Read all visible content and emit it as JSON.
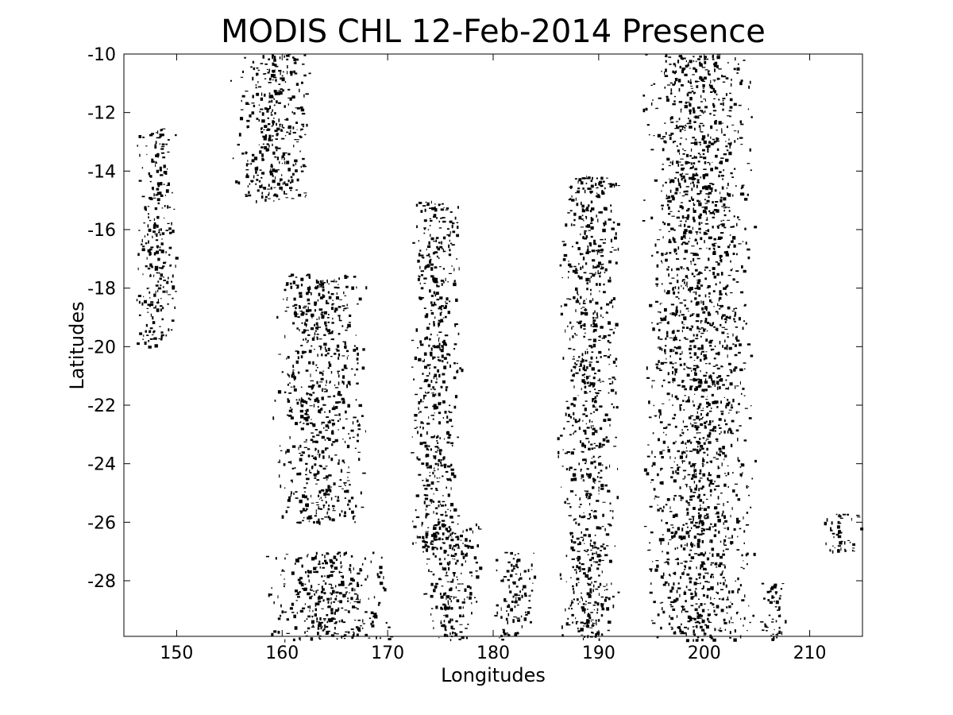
{
  "chart_data": {
    "type": "heatmap",
    "title": "MODIS CHL 12-Feb-2014 Presence",
    "xlabel": "Longitudes",
    "ylabel": "Latitudes",
    "xlim": [
      145,
      215
    ],
    "ylim": [
      -29.9,
      -10
    ],
    "xticks": [
      150,
      160,
      170,
      180,
      190,
      200,
      210
    ],
    "xtick_labels": [
      "150",
      "160",
      "170",
      "180",
      "190",
      "200",
      "210"
    ],
    "yticks": [
      -10,
      -12,
      -14,
      -16,
      -18,
      -20,
      -22,
      -24,
      -26,
      -28
    ],
    "ytick_labels": [
      "-10",
      "-12",
      "-14",
      "-16",
      "-18",
      "-20",
      "-22",
      "-24",
      "-26",
      "-28"
    ],
    "colormap": {
      "absent": "#ffffff",
      "present": "#000000"
    },
    "grid": false,
    "presence_regions": [
      {
        "lon": [
          146,
          150
        ],
        "lat": [
          -20,
          -12.5
        ]
      },
      {
        "lon": [
          155,
          163
        ],
        "lat": [
          -15,
          -10
        ]
      },
      {
        "lon": [
          159,
          168
        ],
        "lat": [
          -26,
          -17.5
        ]
      },
      {
        "lon": [
          158,
          171
        ],
        "lat": [
          -30,
          -27
        ]
      },
      {
        "lon": [
          172,
          177
        ],
        "lat": [
          -27,
          -15
        ]
      },
      {
        "lon": [
          173,
          179
        ],
        "lat": [
          -30,
          -26
        ]
      },
      {
        "lon": [
          180,
          184
        ],
        "lat": [
          -30,
          -27
        ]
      },
      {
        "lon": [
          186,
          192
        ],
        "lat": [
          -30,
          -14
        ]
      },
      {
        "lon": [
          194,
          205
        ],
        "lat": [
          -30,
          -10
        ]
      },
      {
        "lon": [
          205,
          208
        ],
        "lat": [
          -30,
          -28
        ]
      },
      {
        "lon": [
          211,
          215
        ],
        "lat": [
          -27,
          -25.7
        ]
      }
    ]
  }
}
